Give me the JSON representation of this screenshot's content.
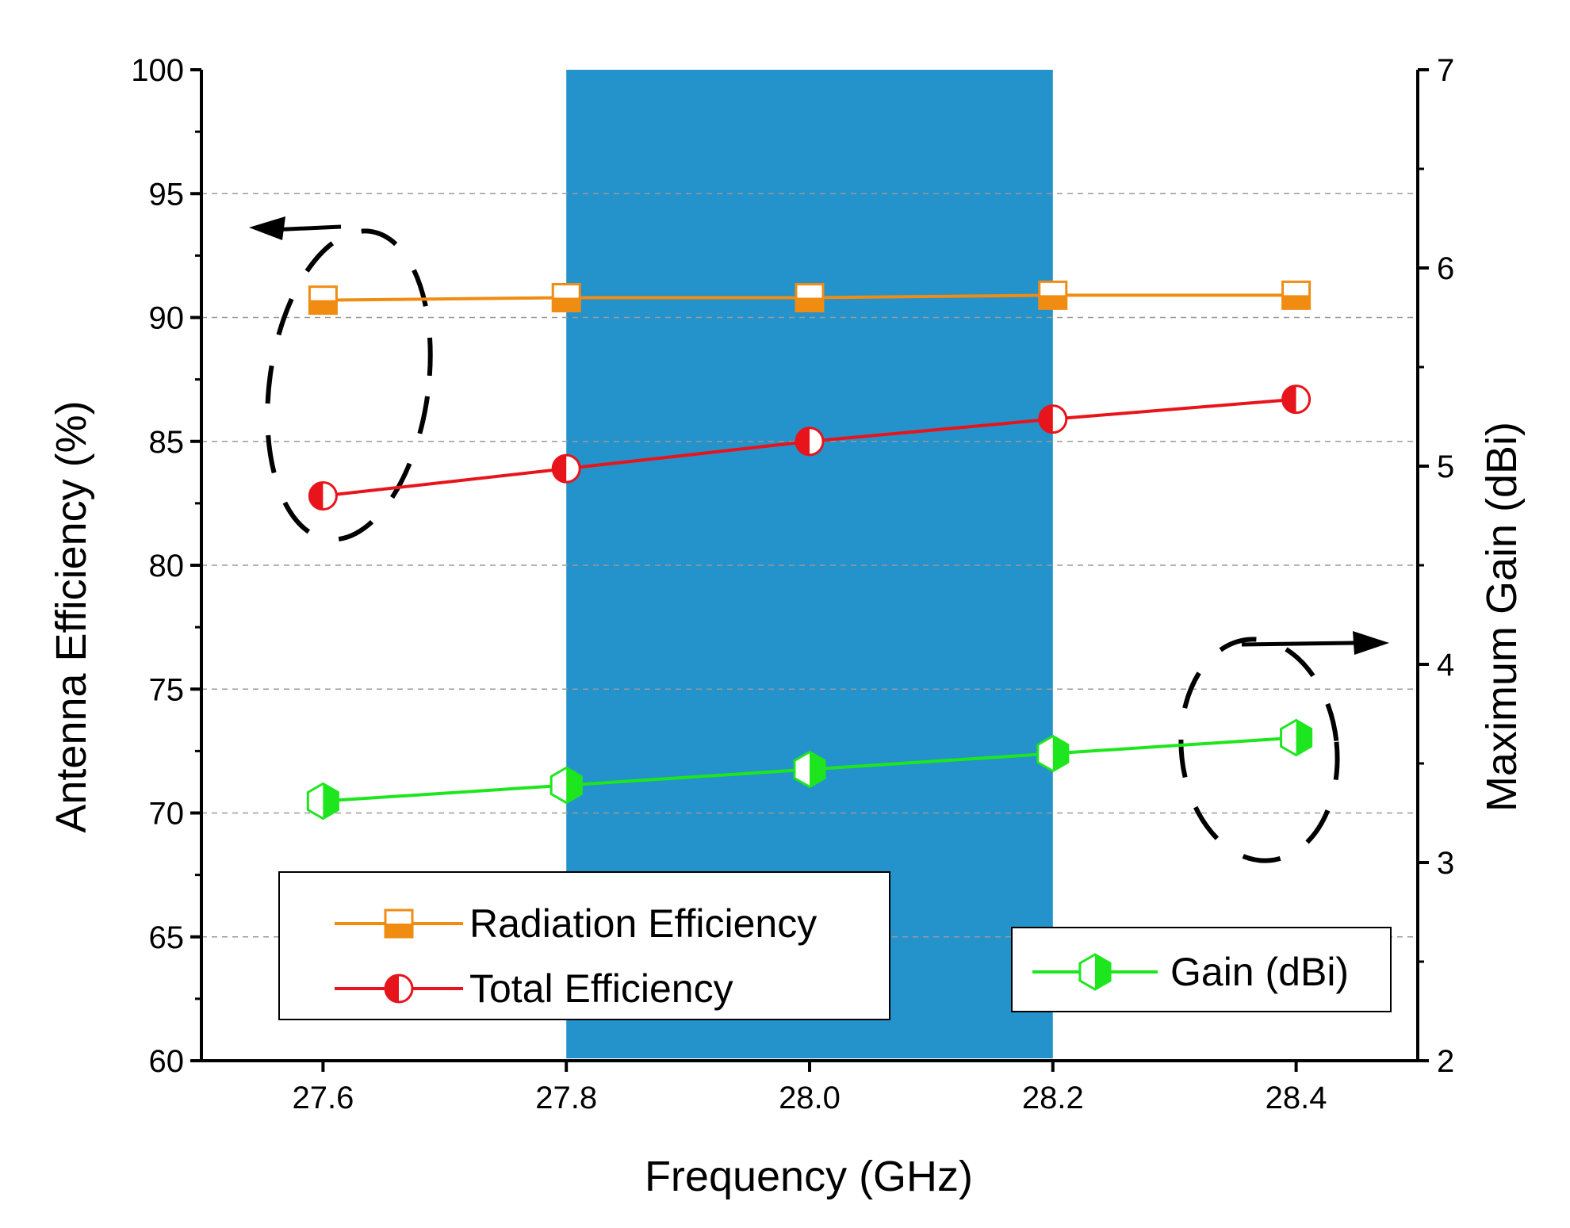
{
  "chart_data": {
    "type": "line",
    "x_ticks": [
      "27.6",
      "27.8",
      "28.0",
      "28.2",
      "28.4"
    ],
    "x_values": [
      27.6,
      27.8,
      28.0,
      28.2,
      28.4
    ],
    "xlim": [
      27.5,
      28.5
    ],
    "xlabel": "Frequency (GHz)",
    "y_left": {
      "label": "Antenna Efficiency (%)",
      "lim": [
        60,
        100
      ],
      "ticks": [
        "60",
        "65",
        "70",
        "75",
        "80",
        "85",
        "90",
        "95",
        "100"
      ]
    },
    "y_right": {
      "label": "Maximum Gain (dBi)",
      "lim": [
        2,
        7
      ],
      "ticks": [
        "2",
        "3",
        "4",
        "5",
        "6",
        "7"
      ]
    },
    "grid": "horizontal dashed",
    "highlight_band": {
      "x_range": [
        27.8,
        28.2
      ],
      "color": "#2492cb"
    },
    "series": [
      {
        "name": "Radiation Efficiency",
        "axis": "left",
        "color": "#f08c12",
        "marker": "square-half-filled",
        "y": [
          90.7,
          90.8,
          90.8,
          90.9,
          90.9
        ]
      },
      {
        "name": "Total Efficiency",
        "axis": "left",
        "color": "#e8141b",
        "marker": "circle-half-filled",
        "y": [
          82.8,
          83.9,
          85.0,
          85.9,
          86.7
        ]
      },
      {
        "name": "Gain (dBi)",
        "axis": "right",
        "color": "#1ee61e",
        "marker": "hexagon-half-filled",
        "y": [
          3.31,
          3.39,
          3.47,
          3.55,
          3.63
        ]
      }
    ],
    "legend_left_position": "bottom-left",
    "legend_right_position": "bottom-right"
  }
}
